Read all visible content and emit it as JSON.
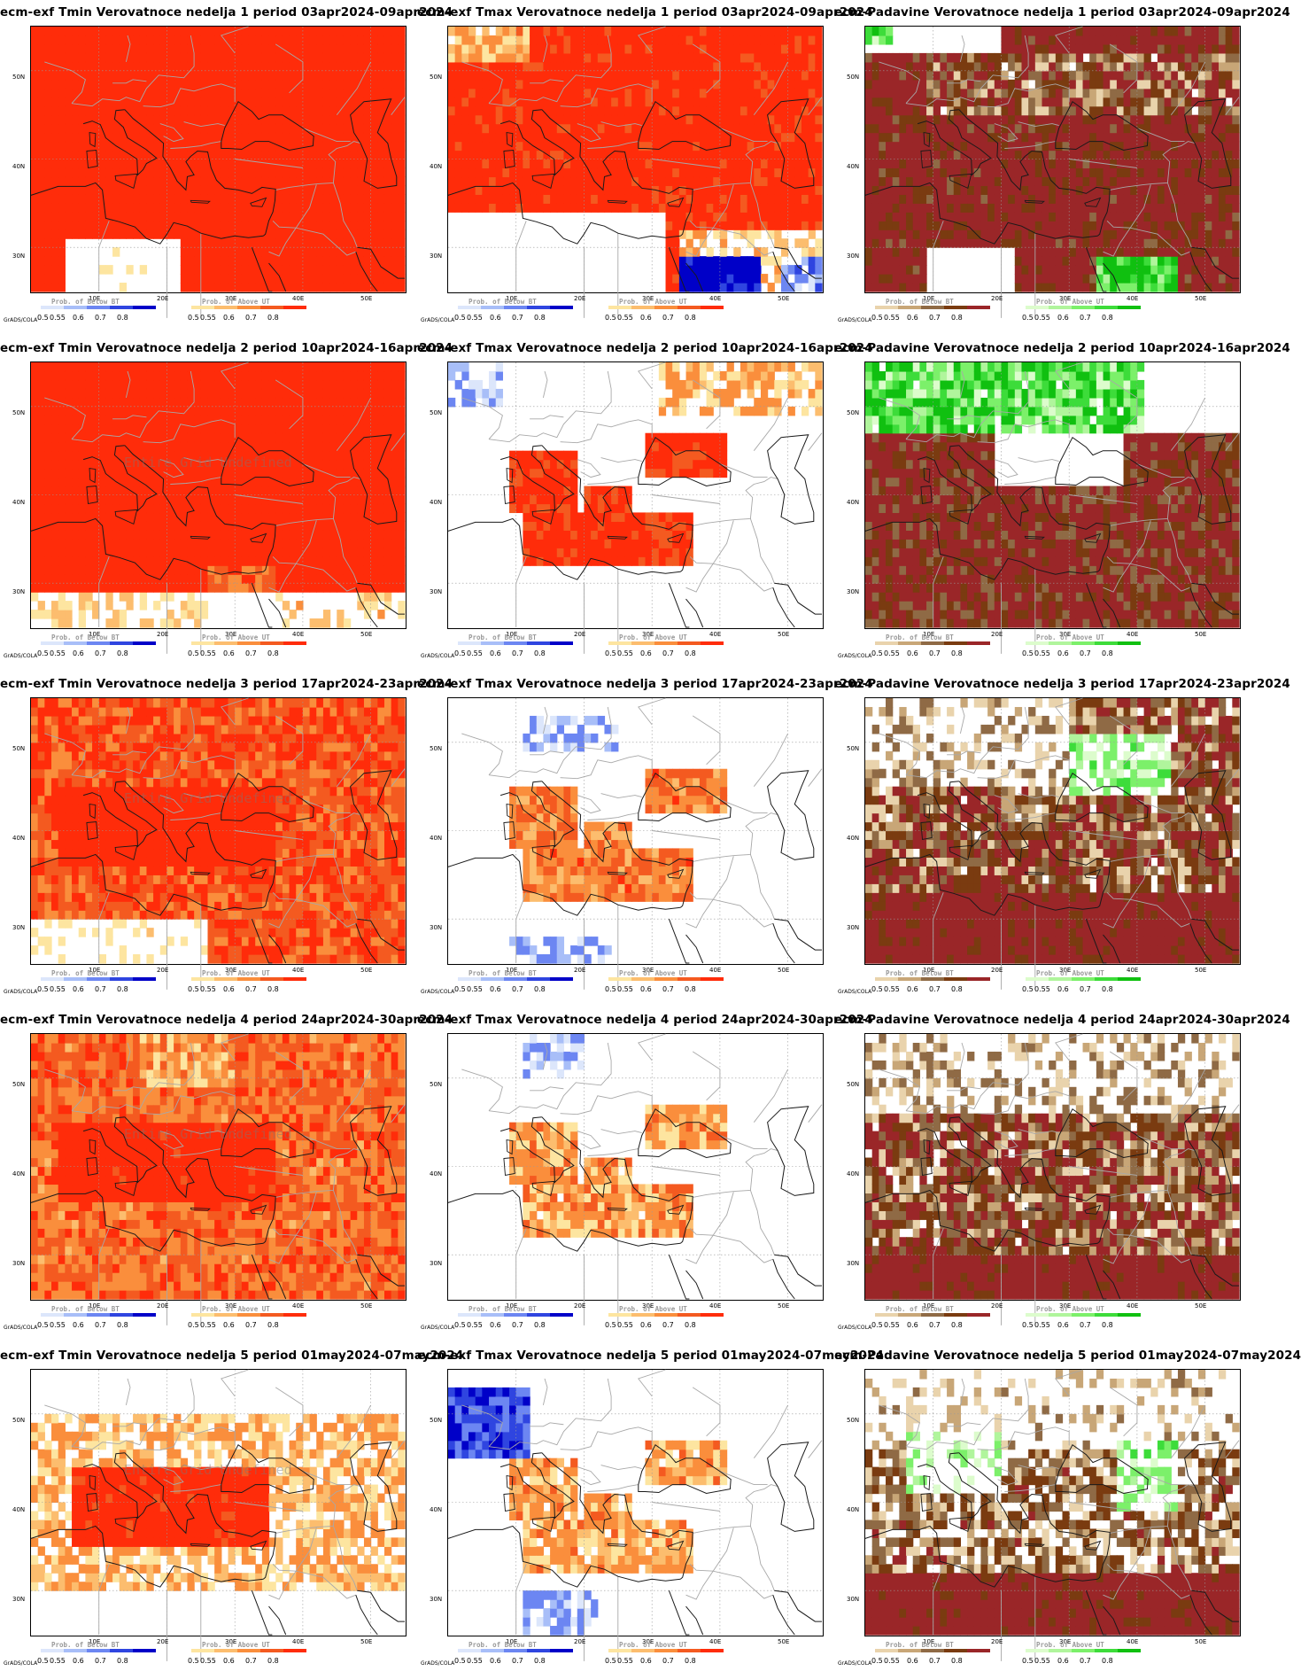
{
  "panels": [
    {
      "title": "ecm-exf Tmin Verovatnoce nedelja 1 period 03apr2024-09apr2024",
      "var": "tmin",
      "week": 1
    },
    {
      "title": "ecm-exf Tmax Verovatnoce nedelja 1 period 03apr2024-09apr2024",
      "var": "tmax",
      "week": 1
    },
    {
      "title": "ecm-Padavine Verovatnoce nedelja 1 period 03apr2024-09apr2024",
      "var": "prec",
      "week": 1
    },
    {
      "title": "ecm-exf Tmin Verovatnoce nedelja 2 period 10apr2024-16apr2024",
      "var": "tmin",
      "week": 2
    },
    {
      "title": "ecm-exf Tmax Verovatnoce nedelja 2 period 10apr2024-16apr2024",
      "var": "tmax",
      "week": 2
    },
    {
      "title": "ecm-Padavine Verovatnoce nedelja 2 period 10apr2024-16apr2024",
      "var": "prec",
      "week": 2
    },
    {
      "title": "ecm-exf Tmin Verovatnoce nedelja 3 period 17apr2024-23apr2024",
      "var": "tmin",
      "week": 3
    },
    {
      "title": "ecm-exf Tmax Verovatnoce nedelja 3 period 17apr2024-23apr2024",
      "var": "tmax",
      "week": 3
    },
    {
      "title": "ecm-Padavine Verovatnoce nedelja 3 period 17apr2024-23apr2024",
      "var": "prec",
      "week": 3
    },
    {
      "title": "ecm-exf Tmin Verovatnoce nedelja 4 period 24apr2024-30apr2024",
      "var": "tmin",
      "week": 4
    },
    {
      "title": "ecm-exf Tmax Verovatnoce nedelja 4 period 24apr2024-30apr2024",
      "var": "tmax",
      "week": 4
    },
    {
      "title": "ecm-Padavine Verovatnoce nedelja 4 period 24apr2024-30apr2024",
      "var": "prec",
      "week": 4
    },
    {
      "title": "ecm-exf Tmin Verovatnoce nedelja 5 period 01may2024-07may2024",
      "var": "tmin",
      "week": 5
    },
    {
      "title": "ecm-exf Tmax Verovatnoce nedelja 5 period 01may2024-07may2024",
      "var": "tmax",
      "week": 5
    },
    {
      "title": "ecm-Padavine Verovatnoce nedelja 5 period 01may2024-07may2024",
      "var": "prec",
      "week": 5
    }
  ],
  "axes": {
    "lat_labels": [
      "50N",
      "40N",
      "30N"
    ],
    "lon_labels": [
      "10E",
      "20E",
      "30E",
      "40E",
      "50E"
    ]
  },
  "footer": "GrADS/COLA",
  "watermark": "Entire Grid Undefined",
  "legend": {
    "below_title": "Prob. of Below BT",
    "above_title": "Prob. of Above UT",
    "ticks": [
      "0.5",
      "0.55",
      "0.6",
      "0.7",
      "0.8"
    ]
  },
  "palettes": {
    "warm": [
      "#fde5a0",
      "#fcbd6e",
      "#fa8e3c",
      "#f45a20",
      "#ff2c0a"
    ],
    "cold": [
      "#dce6fb",
      "#a8bef8",
      "#6c86f2",
      "#2f45e0",
      "#0000c8"
    ],
    "dry": [
      "#e9d3ac",
      "#c8a677",
      "#8f6a45",
      "#7a3b10",
      "#9a2628"
    ],
    "wet": [
      "#dcfccc",
      "#b0f59c",
      "#7cf06a",
      "#3ddc3a",
      "#10c010"
    ]
  }
}
